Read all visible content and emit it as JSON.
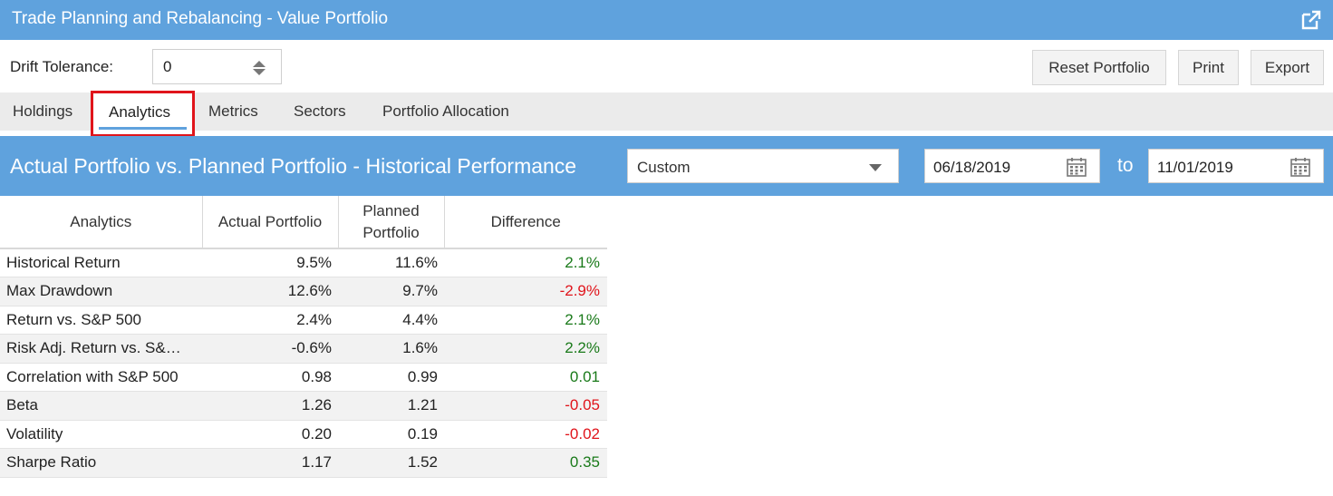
{
  "window": {
    "title": "Trade Planning and Rebalancing - Value Portfolio",
    "popout_icon": "external-link-icon"
  },
  "toolbar": {
    "drift_label": "Drift Tolerance:",
    "drift_value": "0",
    "reset_label": "Reset Portfolio",
    "print_label": "Print",
    "export_label": "Export"
  },
  "tabs": [
    {
      "label": "Holdings",
      "active": false
    },
    {
      "label": "Analytics",
      "active": true
    },
    {
      "label": "Metrics",
      "active": false
    },
    {
      "label": "Sectors",
      "active": false
    },
    {
      "label": "Portfolio Allocation",
      "active": false
    }
  ],
  "section": {
    "heading": "Actual Portfolio vs. Planned Portfolio - Historical Performance",
    "period": "Custom",
    "date_from": "06/18/2019",
    "to_label": "to",
    "date_to": "11/01/2019"
  },
  "table": {
    "headers": [
      "Analytics",
      "Actual Portfolio",
      "Planned Portfolio",
      "Difference"
    ],
    "rows": [
      {
        "name": "Historical Return",
        "actual": "9.5%",
        "planned": "11.6%",
        "diff": "2.1%",
        "sign": "pos"
      },
      {
        "name": "Max Drawdown",
        "actual": "12.6%",
        "planned": "9.7%",
        "diff": "-2.9%",
        "sign": "neg"
      },
      {
        "name": "Return vs. S&P 500",
        "actual": "2.4%",
        "planned": "4.4%",
        "diff": "2.1%",
        "sign": "pos"
      },
      {
        "name": "Risk Adj. Return vs. S&…",
        "actual": "-0.6%",
        "planned": "1.6%",
        "diff": "2.2%",
        "sign": "pos"
      },
      {
        "name": "Correlation with S&P 500",
        "actual": "0.98",
        "planned": "0.99",
        "diff": "0.01",
        "sign": "pos"
      },
      {
        "name": "Beta",
        "actual": "1.26",
        "planned": "1.21",
        "diff": "-0.05",
        "sign": "neg"
      },
      {
        "name": "Volatility",
        "actual": "0.20",
        "planned": "0.19",
        "diff": "-0.02",
        "sign": "neg"
      },
      {
        "name": "Sharpe Ratio",
        "actual": "1.17",
        "planned": "1.52",
        "diff": "0.35",
        "sign": "pos"
      }
    ]
  },
  "colors": {
    "header_blue": "#5fa2dd",
    "positive": "#1a7a1a",
    "negative": "#e0141b",
    "highlight": "#e0141b"
  }
}
